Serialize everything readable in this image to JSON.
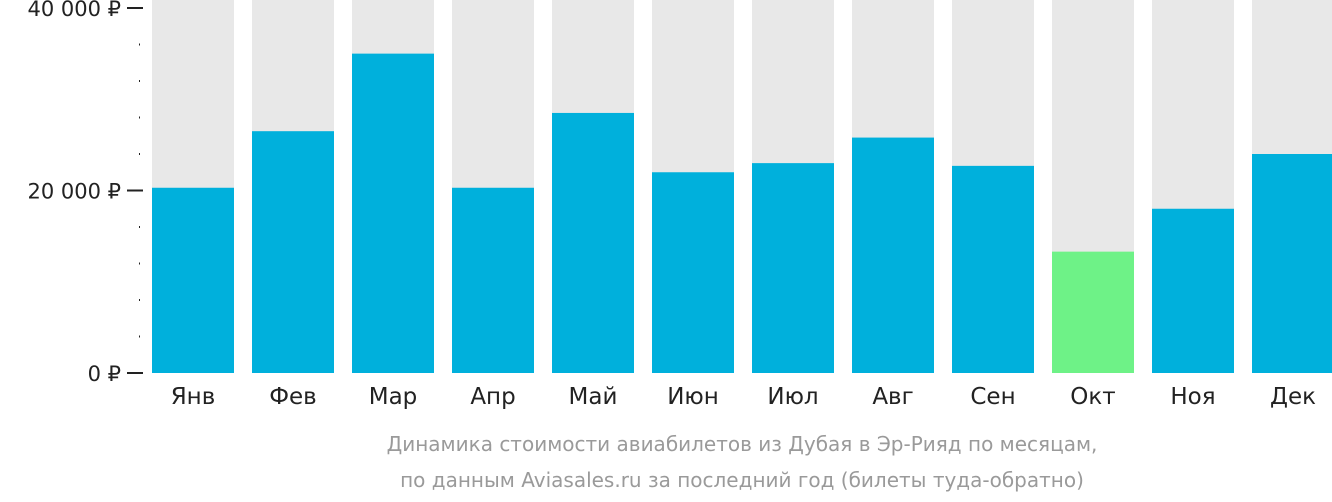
{
  "chart_data": {
    "type": "bar",
    "categories": [
      "Янв",
      "Фев",
      "Мар",
      "Апр",
      "Май",
      "Июн",
      "Июл",
      "Авг",
      "Сен",
      "Окт",
      "Ноя",
      "Дек"
    ],
    "values": [
      20300,
      26500,
      35000,
      20300,
      28500,
      22000,
      23000,
      25800,
      22700,
      13300,
      18000,
      24000
    ],
    "highlight_category": "Окт",
    "ylim": [
      0,
      40000
    ],
    "yticks": [
      {
        "value": 0,
        "label": "0 ₽"
      },
      {
        "value": 20000,
        "label": "20 000 ₽"
      },
      {
        "value": 40000,
        "label": "40 000 ₽"
      }
    ],
    "minor_tick_step": 4000,
    "title": "",
    "xlabel": "",
    "ylabel": "",
    "caption_lines": [
      "Динамика стоимости авиабилетов из Дубая в Эр-Рияд по месяцам,",
      "по данным Aviasales.ru за последний год (билеты туда-обратно)"
    ],
    "grid": false,
    "legend": "none"
  },
  "colors": {
    "bar": "#00b0dc",
    "bar_highlight": "#6ef287",
    "track": "#e8e8e8",
    "axis": "#222222",
    "caption": "#9a9a9a"
  }
}
